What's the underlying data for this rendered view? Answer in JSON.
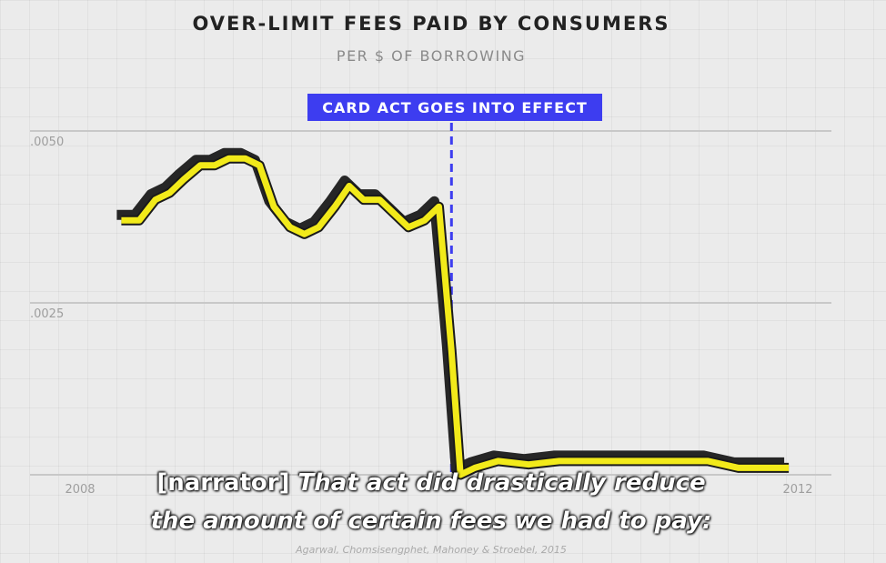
{
  "chart_data": {
    "type": "line",
    "title": "OVER-LIMIT FEES PAID BY CONSUMERS",
    "subtitle": "PER $ OF BORROWING",
    "ylim": [
      0,
      0.005
    ],
    "xlim": [
      2008,
      2012
    ],
    "y_ticks": [
      {
        "value": 0.005,
        "label": ".0050"
      },
      {
        "value": 0.0025,
        "label": ".0025"
      }
    ],
    "x_ticks": [
      {
        "value": 2008,
        "label": "2008"
      },
      {
        "value": 2012,
        "label": "2012"
      }
    ],
    "grid": true,
    "annotation": {
      "label": "CARD ACT GOES INTO EFFECT",
      "x": 2010.07
    },
    "series": [
      {
        "color": "#f2ea1a",
        "shadow_color": "#262626",
        "points": [
          [
            2008.23,
            0.0037
          ],
          [
            2008.33,
            0.0037
          ],
          [
            2008.42,
            0.004
          ],
          [
            2008.5,
            0.0041
          ],
          [
            2008.58,
            0.0043
          ],
          [
            2008.67,
            0.0045
          ],
          [
            2008.75,
            0.0045
          ],
          [
            2008.83,
            0.0046
          ],
          [
            2008.92,
            0.0046
          ],
          [
            2009.0,
            0.0045
          ],
          [
            2009.08,
            0.0039
          ],
          [
            2009.17,
            0.0036
          ],
          [
            2009.25,
            0.0035
          ],
          [
            2009.33,
            0.0036
          ],
          [
            2009.42,
            0.0039
          ],
          [
            2009.5,
            0.0042
          ],
          [
            2009.58,
            0.004
          ],
          [
            2009.67,
            0.004
          ],
          [
            2009.75,
            0.0038
          ],
          [
            2009.83,
            0.0036
          ],
          [
            2009.92,
            0.0037
          ],
          [
            2010.0,
            0.0039
          ],
          [
            2010.07,
            0.0018
          ],
          [
            2010.12,
            0.0
          ],
          [
            2010.2,
            0.0001
          ],
          [
            2010.33,
            0.0002
          ],
          [
            2010.5,
            0.00015
          ],
          [
            2010.67,
            0.0002
          ],
          [
            2010.83,
            0.0002
          ],
          [
            2011.0,
            0.0002
          ],
          [
            2011.17,
            0.0002
          ],
          [
            2011.33,
            0.0002
          ],
          [
            2011.5,
            0.0002
          ],
          [
            2011.67,
            0.0001
          ],
          [
            2011.83,
            0.0001
          ],
          [
            2011.95,
            0.0001
          ]
        ]
      }
    ]
  },
  "caption": {
    "speaker": "[narrator]",
    "line1": "That act did drastically reduce",
    "line2": "the amount of certain fees we had to pay:"
  },
  "source": "Agarwal, Chomsisengphet, Mahoney & Stroebel, 2015"
}
